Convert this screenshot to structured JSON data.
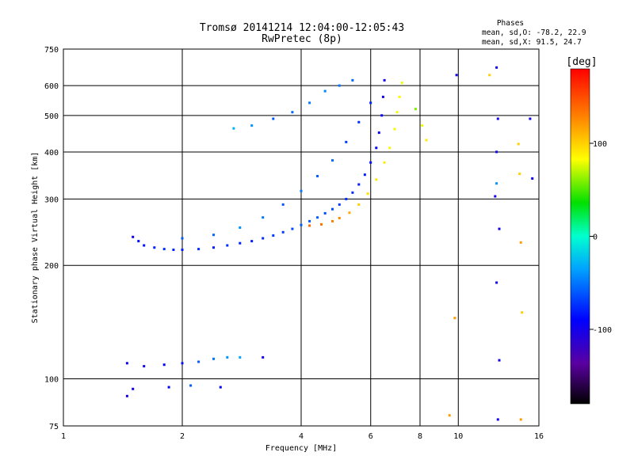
{
  "chart_data": {
    "type": "scatter",
    "title": "Tromsø 20141214 12:04:00-12:05:43",
    "subtitle": "RwPretec (8p)",
    "xlabel": "Frequency [MHz]",
    "ylabel": "Stationary phase Virtual Height [km]",
    "x_scale": "log",
    "y_scale": "log",
    "xlim": [
      1,
      16
    ],
    "ylim": [
      75,
      750
    ],
    "x_ticks": [
      1,
      2,
      4,
      6,
      8,
      10,
      16
    ],
    "y_ticks": [
      75,
      100,
      200,
      300,
      400,
      500,
      600,
      750
    ],
    "grid_x": [
      2,
      4,
      6,
      8,
      10
    ],
    "grid_y": [
      100,
      200,
      300,
      400,
      500,
      600
    ],
    "phase_stats": {
      "heading": "Phases",
      "o_line": "mean, sd,O: -78.2, 22.9",
      "x_line": "mean, sd,X:  91.5, 24.7"
    },
    "colorbar": {
      "label": "[deg]",
      "range": [
        -180,
        180
      ],
      "ticks": [
        {
          "value": 100,
          "label": "100"
        },
        {
          "value": 0,
          "label": "0"
        },
        {
          "value": -100,
          "label": "-100"
        }
      ]
    },
    "series": [
      {
        "description_key": "F-layer O-mode trace",
        "points": [
          [
            1.5,
            238,
            -100
          ],
          [
            1.55,
            232,
            -90
          ],
          [
            1.6,
            226,
            -85
          ],
          [
            1.7,
            223,
            -80
          ],
          [
            1.8,
            221,
            -75
          ],
          [
            1.9,
            220,
            -78
          ],
          [
            2.0,
            220,
            -80
          ],
          [
            2.2,
            221,
            -75
          ],
          [
            2.4,
            223,
            -80
          ],
          [
            2.6,
            226,
            -75
          ],
          [
            2.8,
            229,
            -80
          ],
          [
            3.0,
            232,
            -80
          ],
          [
            3.2,
            236,
            -75
          ],
          [
            3.4,
            240,
            -70
          ],
          [
            3.6,
            245,
            -70
          ],
          [
            3.8,
            250,
            -65
          ],
          [
            4.0,
            256,
            -60
          ],
          [
            4.2,
            262,
            -60
          ],
          [
            4.4,
            268,
            -60
          ],
          [
            4.6,
            275,
            -65
          ],
          [
            4.8,
            282,
            -65
          ],
          [
            5.0,
            290,
            -70
          ],
          [
            5.2,
            300,
            -75
          ],
          [
            5.4,
            312,
            -75
          ],
          [
            5.6,
            328,
            -80
          ],
          [
            5.8,
            348,
            -80
          ],
          [
            6.0,
            375,
            -85
          ],
          [
            6.2,
            410,
            -90
          ],
          [
            6.3,
            450,
            -95
          ],
          [
            6.4,
            500,
            -95
          ],
          [
            6.45,
            560,
            -100
          ],
          [
            6.5,
            620,
            -100
          ]
        ]
      },
      {
        "description_key": "F-layer X-mode trace",
        "points": [
          [
            4.2,
            255,
            140
          ],
          [
            4.5,
            257,
            135
          ],
          [
            4.8,
            262,
            130
          ],
          [
            5.0,
            267,
            125
          ],
          [
            5.3,
            276,
            115
          ],
          [
            5.6,
            290,
            100
          ],
          [
            5.9,
            310,
            95
          ],
          [
            6.2,
            338,
            90
          ],
          [
            6.5,
            375,
            90
          ],
          [
            6.7,
            410,
            85
          ],
          [
            6.9,
            460,
            80
          ],
          [
            7.0,
            510,
            80
          ],
          [
            7.1,
            560,
            85
          ],
          [
            7.2,
            610,
            80
          ]
        ]
      },
      {
        "description_key": "Oblique/spread traces",
        "points": [
          [
            2.0,
            236,
            -60
          ],
          [
            2.4,
            241,
            -55
          ],
          [
            2.8,
            252,
            -40
          ],
          [
            3.2,
            268,
            -50
          ],
          [
            3.6,
            290,
            -60
          ],
          [
            4.0,
            315,
            -50
          ],
          [
            4.4,
            345,
            -60
          ],
          [
            4.8,
            380,
            -55
          ],
          [
            5.2,
            425,
            -70
          ],
          [
            5.6,
            480,
            -75
          ],
          [
            6.0,
            540,
            -80
          ],
          [
            2.7,
            462,
            -30
          ],
          [
            3.0,
            470,
            -40
          ],
          [
            3.4,
            490,
            -60
          ],
          [
            3.8,
            510,
            -55
          ],
          [
            4.2,
            540,
            -50
          ],
          [
            4.6,
            580,
            -45
          ],
          [
            5.0,
            600,
            -50
          ],
          [
            5.4,
            620,
            -55
          ],
          [
            7.8,
            520,
            60
          ],
          [
            8.1,
            470,
            80
          ],
          [
            8.3,
            430,
            90
          ]
        ]
      },
      {
        "description_key": "Sporadic E traces",
        "points": [
          [
            1.45,
            110,
            -95
          ],
          [
            1.6,
            108,
            -100
          ],
          [
            1.8,
            109,
            -90
          ],
          [
            2.0,
            110,
            -85
          ],
          [
            2.2,
            111,
            -60
          ],
          [
            2.4,
            113,
            -50
          ],
          [
            2.6,
            114,
            -40
          ],
          [
            2.8,
            114,
            -35
          ],
          [
            1.45,
            90,
            -100
          ],
          [
            1.5,
            94,
            -100
          ],
          [
            1.85,
            95,
            -90
          ],
          [
            2.1,
            96,
            -60
          ],
          [
            2.5,
            95,
            -90
          ],
          [
            3.2,
            114,
            -100
          ]
        ]
      },
      {
        "description_key": "Scattered high-frequency echoes",
        "points": [
          [
            9.5,
            80,
            120
          ],
          [
            9.8,
            145,
            120
          ],
          [
            9.9,
            640,
            -100
          ],
          [
            12.0,
            640,
            100
          ],
          [
            12.5,
            670,
            -100
          ],
          [
            12.6,
            490,
            -100
          ],
          [
            12.5,
            400,
            -100
          ],
          [
            12.5,
            330,
            -40
          ],
          [
            12.4,
            305,
            -100
          ],
          [
            12.7,
            250,
            -100
          ],
          [
            12.5,
            180,
            -100
          ],
          [
            12.7,
            112,
            -100
          ],
          [
            12.6,
            78,
            -100
          ],
          [
            14.2,
            420,
            100
          ],
          [
            14.3,
            350,
            100
          ],
          [
            14.4,
            230,
            120
          ],
          [
            14.5,
            150,
            100
          ],
          [
            14.4,
            78,
            120
          ],
          [
            15.2,
            490,
            -100
          ],
          [
            15.4,
            340,
            -100
          ]
        ]
      }
    ]
  }
}
